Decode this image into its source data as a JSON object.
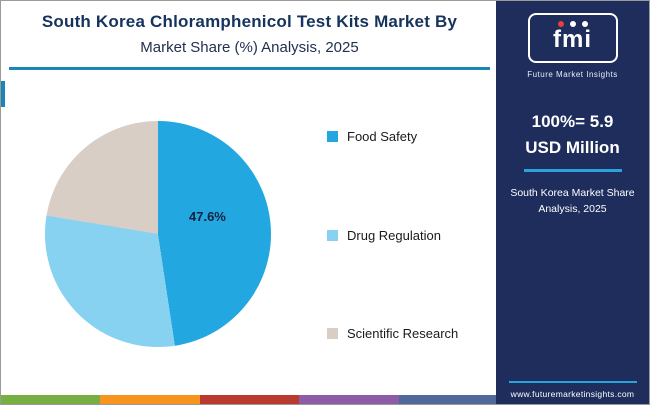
{
  "header": {
    "title_line1": "South Korea Chloramphenicol Test Kits Market By",
    "title_line2": "Market Share (%) Analysis, 2025"
  },
  "chart_data": {
    "type": "pie",
    "title": "South Korea Chloramphenicol Test Kits Market By Market Share (%) Analysis, 2025",
    "categories": [
      "Food Safety",
      "Drug Regulation",
      "Scientific Research"
    ],
    "values": [
      47.6,
      30.0,
      22.4
    ],
    "colors": [
      "#22a7e0",
      "#87d2f1",
      "#d9cec5"
    ],
    "data_labels": [
      "47.6%",
      "",
      ""
    ],
    "start_angle_deg": 0,
    "legend_position": "right",
    "total_note": "100%= 5.9 USD Million"
  },
  "sidebar": {
    "logo_text": "fmi",
    "logo_caption": "Future Market Insights",
    "stat_line1": "100%= 5.9",
    "stat_line2": "USD Million",
    "caption_line1": "South Korea Market Share",
    "caption_line2": "Analysis, 2025",
    "website": "www.futuremarketinsights.com"
  },
  "colors": {
    "title_navy": "#16335e",
    "divider_teal": "#1a86b8",
    "sidebar_bg": "#1e2d5c",
    "sidebar_accent": "#2aa3da",
    "stripe": [
      "#76b043",
      "#f7941e",
      "#b93a2e",
      "#8e5ba6",
      "#51689a"
    ]
  }
}
